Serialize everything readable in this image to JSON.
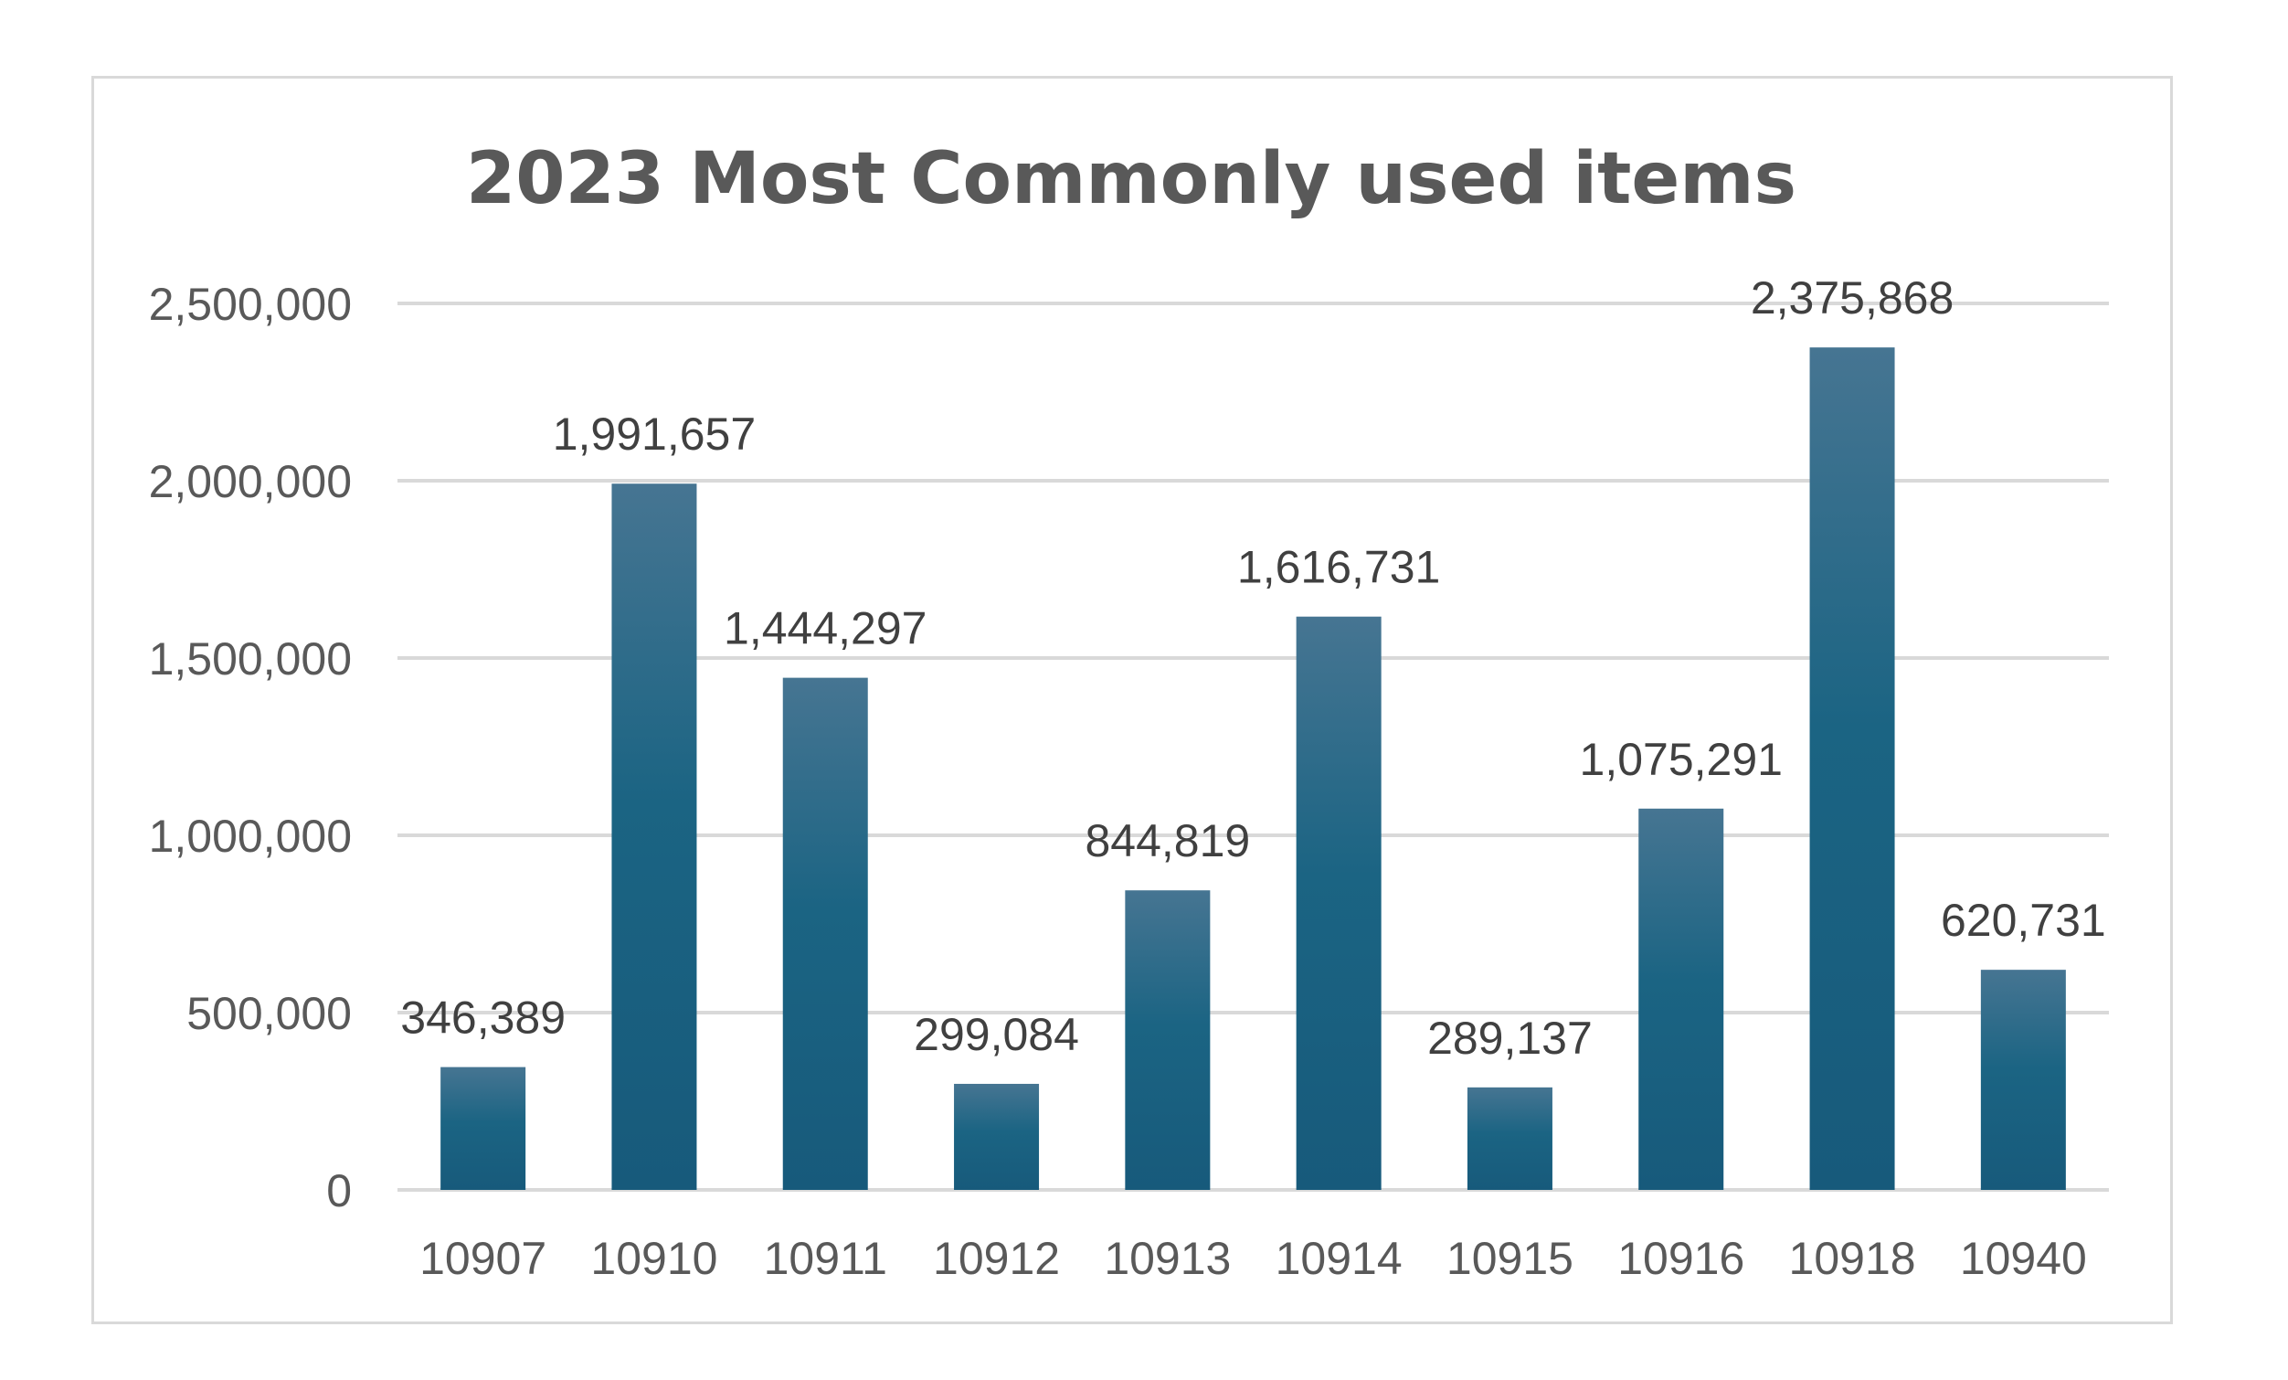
{
  "chart_data": {
    "type": "bar",
    "title": "2023 Most Commonly used items",
    "xlabel": "",
    "ylabel": "",
    "categories": [
      "10907",
      "10910",
      "10911",
      "10912",
      "10913",
      "10914",
      "10915",
      "10916",
      "10918",
      "10940"
    ],
    "values": [
      346389,
      1991657,
      1444297,
      299084,
      844819,
      1616731,
      289137,
      1075291,
      2375868,
      620731
    ],
    "data_labels": [
      "346,389",
      "1,991,657",
      "1,444,297",
      "299,084",
      "844,819",
      "1,616,731",
      "289,137",
      "1,075,291",
      "2,375,868",
      "620,731"
    ],
    "y_ticks": [
      0,
      500000,
      1000000,
      1500000,
      2000000,
      2500000
    ],
    "y_tick_labels": [
      "0",
      "500,000",
      "1,000,000",
      "1,500,000",
      "2,000,000",
      "2,500,000"
    ],
    "ylim": [
      0,
      2500000
    ],
    "grid": true,
    "legend": "none",
    "colors": {
      "bar_top": "#467592",
      "bar_mid": "#1b6483",
      "bar_bottom": "#175a7b",
      "gridline": "#d9d9d9",
      "frame": "#d9d9d9",
      "title": "#595959",
      "tick_text": "#595959",
      "label_text": "#404040"
    }
  }
}
